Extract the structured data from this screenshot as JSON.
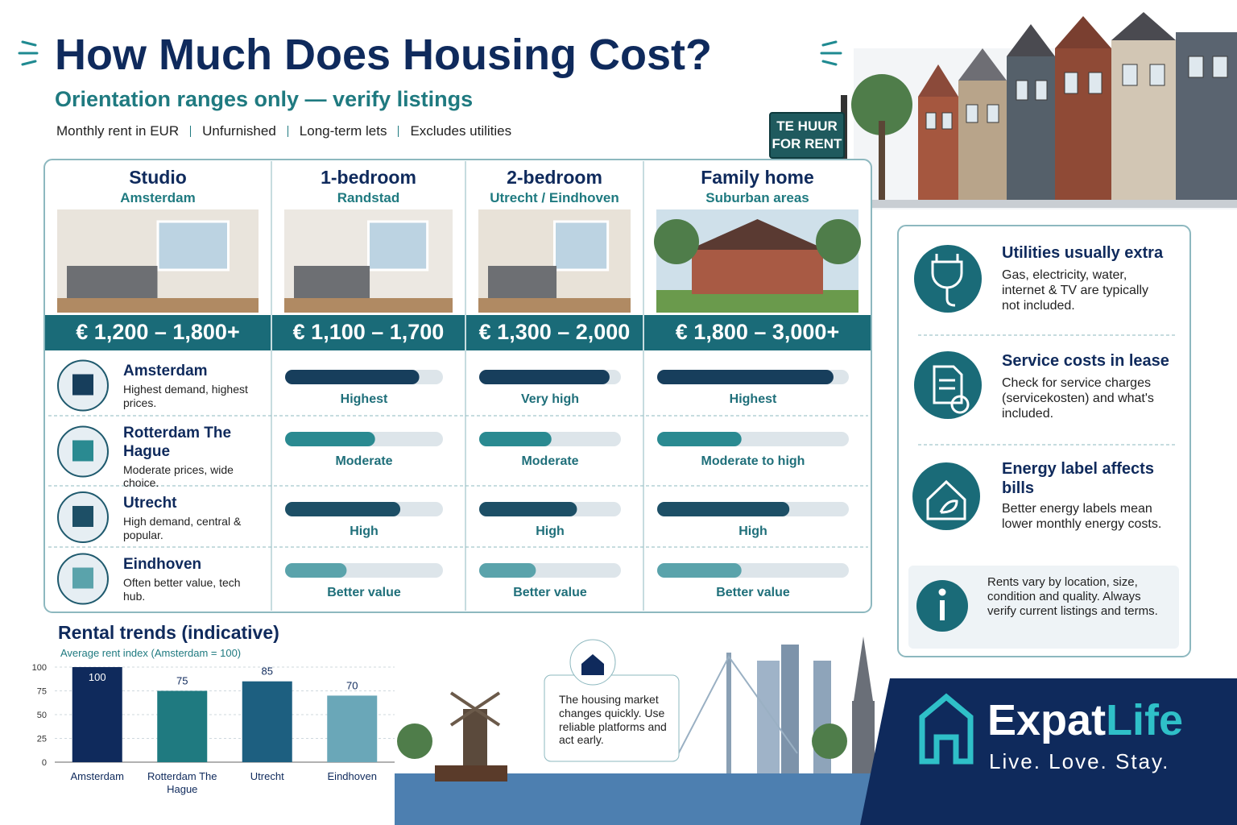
{
  "header": {
    "title": "How Much Does Housing Cost?",
    "subtitle": "Orientation ranges only — verify listings",
    "notes": [
      "Monthly rent in EUR",
      "Unfurnished",
      "Long-term lets",
      "Excludes utilities"
    ]
  },
  "sign": {
    "line1": "TE HUUR",
    "line2": "FOR RENT"
  },
  "table": {
    "columns": [
      {
        "title": "Studio",
        "area": "Amsterdam",
        "price": "€ 1,200 – 1,800+"
      },
      {
        "title": "1-bedroom",
        "area": "Randstad",
        "price": "€ 1,100 – 1,700"
      },
      {
        "title": "2-bedroom",
        "area": "Utrecht / Eindhoven",
        "price": "€ 1,300 – 2,000"
      },
      {
        "title": "Family home",
        "area": "Suburban areas",
        "price": "€ 1,800 – 3,000+"
      }
    ],
    "rows": [
      {
        "city": "Amsterdam",
        "note": "Highest demand, highest prices.",
        "color": "#173e5c",
        "cells": [
          {
            "label": "Highest",
            "level": 0.85
          },
          {
            "label": "Very high",
            "level": 0.92
          },
          {
            "label": "Highest",
            "level": 0.92
          }
        ]
      },
      {
        "city": "Rotterdam The Hague",
        "note": "Moderate prices, wide choice.",
        "color": "#2a8a91",
        "cells": [
          {
            "label": "Moderate",
            "level": 0.57
          },
          {
            "label": "Moderate",
            "level": 0.51
          },
          {
            "label": "Moderate to high",
            "level": 0.44
          }
        ]
      },
      {
        "city": "Utrecht",
        "note": "High demand, central & popular.",
        "color": "#1d4f66",
        "cells": [
          {
            "label": "High",
            "level": 0.73
          },
          {
            "label": "High",
            "level": 0.69
          },
          {
            "label": "High",
            "level": 0.69
          }
        ]
      },
      {
        "city": "Eindhoven",
        "note": "Often better value, tech hub.",
        "color": "#5aa3ab",
        "cells": [
          {
            "label": "Better value",
            "level": 0.39
          },
          {
            "label": "Better value",
            "level": 0.4
          },
          {
            "label": "Better value",
            "level": 0.44
          }
        ]
      }
    ]
  },
  "side": {
    "items": [
      {
        "title": "Utilities usually extra",
        "text": "Gas, electricity, water, internet & TV are typically not included."
      },
      {
        "title": "Service costs in lease",
        "text": "Check for service charges (servicekosten) and what's included."
      },
      {
        "title": "Energy label affects bills",
        "text": "Better energy labels mean lower monthly energy costs."
      }
    ],
    "info": "Rents vary by location, size, condition and quality. Always verify current listings and terms."
  },
  "callout": "The housing market changes quickly. Use reliable platforms and act early.",
  "brand": {
    "name1": "Expat",
    "name2": "Life",
    "tagline": "Live. Love. Stay."
  },
  "chart_data": {
    "type": "bar",
    "title": "Rental trends (indicative)",
    "subtitle": "Average rent index (Amsterdam = 100)",
    "categories": [
      "Amsterdam",
      "Rotterdam The Hague",
      "Utrecht",
      "Eindhoven"
    ],
    "values": [
      100,
      75,
      85,
      70
    ],
    "colors": [
      "#0f2a5c",
      "#1f7a80",
      "#1d5f80",
      "#6aa7b8"
    ],
    "ylim": [
      0,
      100
    ],
    "yticks": [
      0,
      25,
      50,
      75,
      100
    ],
    "grid": true
  }
}
